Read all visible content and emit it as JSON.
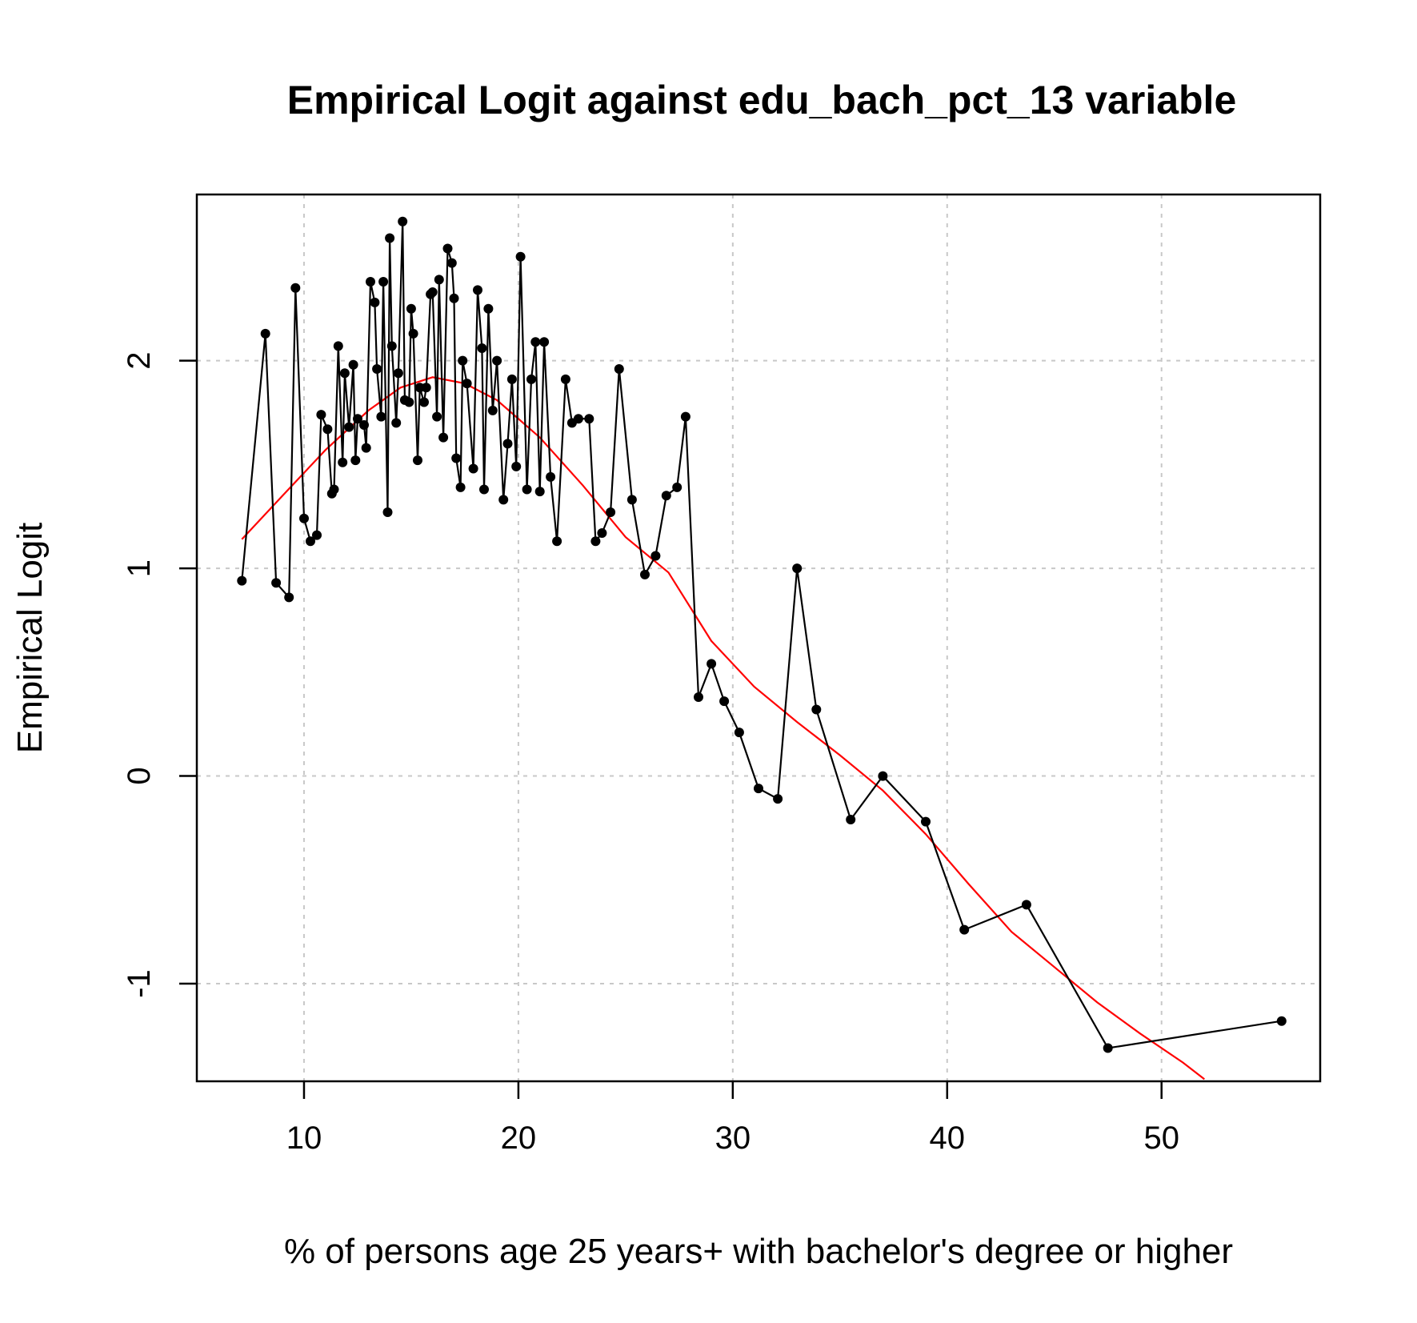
{
  "chart_data": {
    "type": "scatter",
    "title": "Empirical Logit against edu_bach_pct_13 variable",
    "xlabel": "% of persons age 25 years+ with bachelor's degree or higher",
    "ylabel": "Empirical Logit",
    "xlim": [
      5,
      57.4
    ],
    "ylim": [
      -1.47,
      2.8
    ],
    "x_ticks": [
      10,
      20,
      30,
      40,
      50
    ],
    "y_ticks": [
      -1,
      0,
      1,
      2
    ],
    "grid": true,
    "colors": {
      "points": "#000000",
      "line": "#000000",
      "smooth": "#ff0000",
      "grid": "#c8c8c8"
    },
    "series": [
      {
        "style": "points-and-lines",
        "x": [
          7.1,
          8.2,
          8.7,
          9.3,
          9.6,
          10.0,
          10.3,
          10.6,
          10.8,
          11.1,
          11.3,
          11.4,
          11.6,
          11.8,
          11.9,
          12.1,
          12.3,
          12.4,
          12.5,
          12.8,
          12.9,
          13.1,
          13.3,
          13.4,
          13.6,
          13.7,
          13.9,
          14.0,
          14.1,
          14.3,
          14.4,
          14.6,
          14.7,
          14.9,
          15.0,
          15.1,
          15.3,
          15.4,
          15.6,
          15.7,
          15.9,
          16.0,
          16.2,
          16.3,
          16.5,
          16.7,
          16.9,
          17.0,
          17.1,
          17.3,
          17.4,
          17.6,
          17.9,
          18.1,
          18.3,
          18.4,
          18.6,
          18.8,
          19.0,
          19.3,
          19.5,
          19.7,
          19.9,
          20.1,
          20.4,
          20.6,
          20.8,
          21.0,
          21.2,
          21.5,
          21.8,
          22.2,
          22.5,
          22.8,
          23.3,
          23.6,
          23.9,
          24.3,
          24.7,
          25.3,
          25.9,
          26.4,
          26.9,
          27.4,
          27.8,
          28.4,
          29.0,
          29.6,
          30.3,
          31.2,
          32.1,
          33.0,
          33.9,
          35.5,
          37.0,
          39.0,
          40.8,
          43.7,
          47.5,
          55.6
        ],
        "y": [
          0.94,
          2.13,
          0.93,
          0.86,
          2.35,
          1.24,
          1.13,
          1.16,
          1.74,
          1.67,
          1.36,
          1.38,
          2.07,
          1.51,
          1.94,
          1.68,
          1.98,
          1.52,
          1.72,
          1.69,
          1.58,
          2.38,
          2.28,
          1.96,
          1.73,
          2.38,
          1.27,
          2.59,
          2.07,
          1.7,
          1.94,
          2.67,
          1.81,
          1.8,
          2.25,
          2.13,
          1.52,
          1.87,
          1.8,
          1.87,
          2.32,
          2.33,
          1.73,
          2.39,
          1.63,
          2.54,
          2.47,
          2.3,
          1.53,
          1.39,
          2.0,
          1.89,
          1.48,
          2.34,
          2.06,
          1.38,
          2.25,
          1.76,
          2.0,
          1.33,
          1.6,
          1.91,
          1.49,
          2.5,
          1.38,
          1.91,
          2.09,
          1.37,
          2.09,
          1.44,
          1.13,
          1.91,
          1.7,
          1.72,
          1.72,
          1.13,
          1.17,
          1.27,
          1.96,
          1.33,
          0.97,
          1.06,
          1.35,
          1.39,
          1.73,
          0.38,
          0.54,
          0.36,
          0.21,
          -0.06,
          -0.11,
          1.0,
          0.32,
          -0.21,
          0.0,
          -0.22,
          -0.74,
          -0.62,
          -1.31,
          -1.18
        ]
      },
      {
        "style": "smooth-line",
        "x": [
          7.1,
          9.0,
          11.0,
          13.0,
          14.5,
          16.0,
          17.5,
          19.0,
          21.0,
          23.0,
          25.0,
          27.0,
          29.0,
          31.0,
          33.0,
          35.0,
          37.0,
          39.0,
          41.0,
          43.0,
          45.0,
          47.0,
          49.0,
          51.0,
          52.0
        ],
        "y": [
          1.14,
          1.35,
          1.57,
          1.76,
          1.87,
          1.92,
          1.89,
          1.81,
          1.63,
          1.4,
          1.15,
          0.98,
          0.65,
          0.43,
          0.26,
          0.1,
          -0.07,
          -0.28,
          -0.52,
          -0.75,
          -0.92,
          -1.09,
          -1.24,
          -1.38,
          -1.46
        ]
      }
    ]
  }
}
